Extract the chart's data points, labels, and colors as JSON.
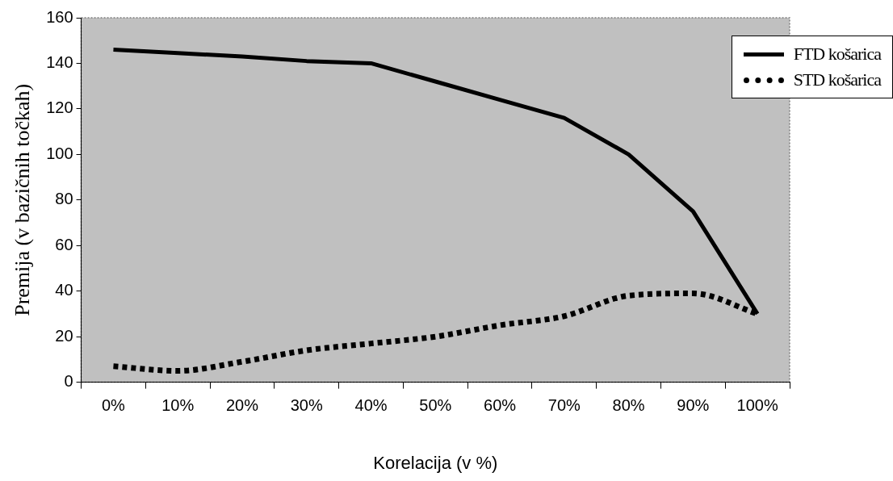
{
  "chart_data": {
    "type": "line",
    "xlabel": "Korelacija (v %)",
    "ylabel": "Premija (v bazičnih točkah)",
    "categories": [
      "0%",
      "10%",
      "20%",
      "30%",
      "40%",
      "50%",
      "60%",
      "70%",
      "80%",
      "90%",
      "100%"
    ],
    "ylim": [
      0,
      160
    ],
    "yticks": [
      0,
      20,
      40,
      60,
      80,
      100,
      120,
      140,
      160
    ],
    "grid": false,
    "legend": "top right",
    "marker": "none",
    "series": [
      {
        "name": "FTD košarica",
        "color": "#000000",
        "line_style": "solid",
        "values": [
          146,
          144.5,
          143,
          141,
          140,
          132,
          124,
          116,
          100,
          75,
          30
        ]
      },
      {
        "name": "STD košarica",
        "color": "#000000",
        "line_style": "dotted",
        "values": [
          7,
          5,
          9,
          14,
          17,
          20,
          25,
          29,
          38,
          39,
          30
        ]
      }
    ]
  }
}
